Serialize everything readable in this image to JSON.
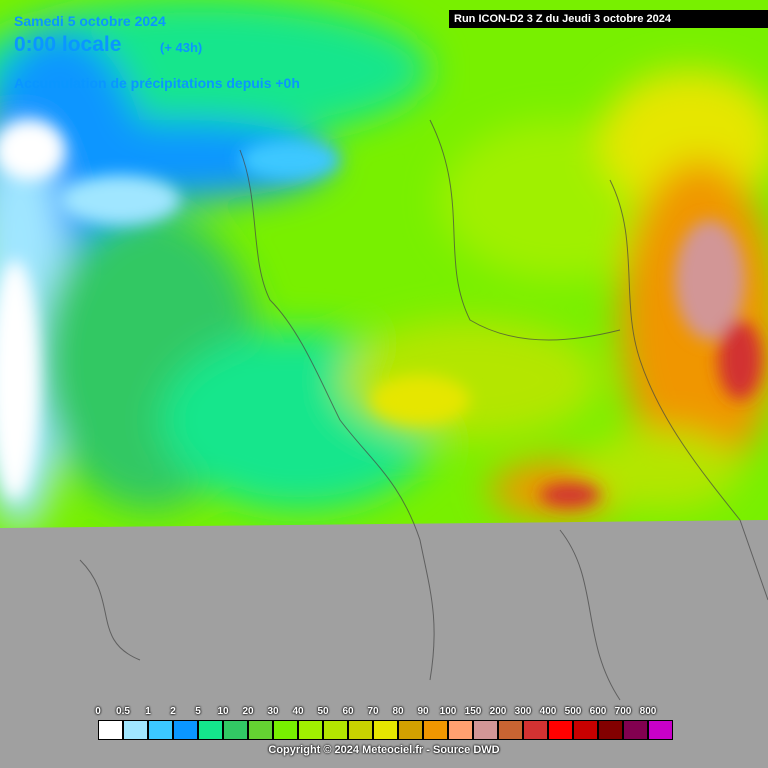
{
  "header": {
    "date": "Samedi 5 octobre 2024",
    "time": "0:00 locale",
    "lead": "(+ 43h)",
    "product": "Accumulation de précipitations depuis +0h",
    "run": "Run ICON-D2 3 Z du Jeudi 3 octobre 2024"
  },
  "legend": {
    "items": [
      {
        "label": "0",
        "color": "#ffffff"
      },
      {
        "label": "0.5",
        "color": "#a0e6ff"
      },
      {
        "label": "1",
        "color": "#3cc8ff"
      },
      {
        "label": "2",
        "color": "#0a96ff"
      },
      {
        "label": "5",
        "color": "#14e68c"
      },
      {
        "label": "10",
        "color": "#32c864"
      },
      {
        "label": "20",
        "color": "#64d232"
      },
      {
        "label": "30",
        "color": "#78f000"
      },
      {
        "label": "40",
        "color": "#a0f000"
      },
      {
        "label": "50",
        "color": "#b4e600"
      },
      {
        "label": "60",
        "color": "#c8d200"
      },
      {
        "label": "70",
        "color": "#e6e600"
      },
      {
        "label": "80",
        "color": "#d2a000"
      },
      {
        "label": "90",
        "color": "#f09600"
      },
      {
        "label": "100",
        "color": "#ffa070"
      },
      {
        "label": "150",
        "color": "#d29696"
      },
      {
        "label": "200",
        "color": "#c86432"
      },
      {
        "label": "300",
        "color": "#d23232"
      },
      {
        "label": "400",
        "color": "#ff0000"
      },
      {
        "label": "500",
        "color": "#c80000"
      },
      {
        "label": "600",
        "color": "#820000"
      },
      {
        "label": "700",
        "color": "#820050"
      },
      {
        "label": "800",
        "color": "#c800c8"
      }
    ]
  },
  "footer": {
    "copyright": "Copyright © 2024 Meteociel.fr - Source DWD"
  }
}
